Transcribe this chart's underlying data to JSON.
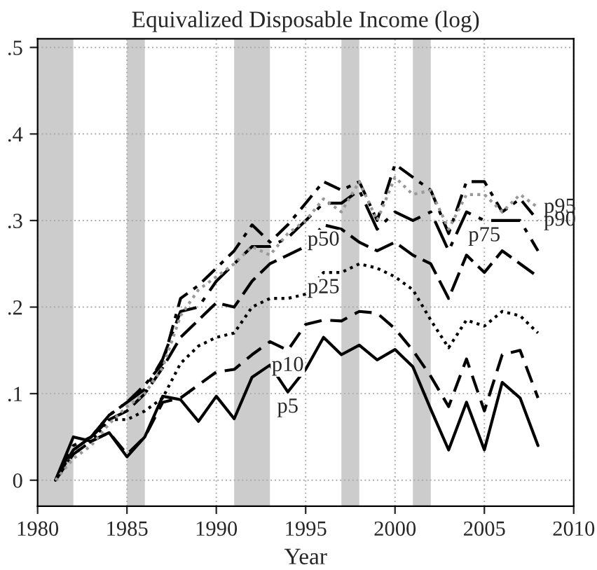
{
  "chart_data": {
    "type": "line",
    "title": "Equivalized Disposable Income (log)",
    "xlabel": "Year",
    "x": [
      1981,
      1982,
      1983,
      1984,
      1985,
      1986,
      1987,
      1988,
      1989,
      1990,
      1991,
      1992,
      1993,
      1994,
      1995,
      1996,
      1997,
      1998,
      1999,
      2000,
      2001,
      2002,
      2003,
      2004,
      2005,
      2006,
      2007,
      2008
    ],
    "series": [
      {
        "color": "#000000",
        "line_style": "solid",
        "values": [
          0,
          0.05,
          0.045,
          0.055,
          0.027,
          0.05,
          0.097,
          0.093,
          0.068,
          0.097,
          0.071,
          0.119,
          0.133,
          0.102,
          0.128,
          0.165,
          0.145,
          0.156,
          0.139,
          0.151,
          0.131,
          0.082,
          0.035,
          0.09,
          0.035,
          0.113,
          0.095,
          0.04
        ]
      },
      {
        "color": "#000000",
        "line_style": "dashed",
        "values": [
          0,
          0.03,
          0.045,
          0.055,
          0.03,
          0.05,
          0.09,
          0.095,
          0.11,
          0.125,
          0.128,
          0.145,
          0.16,
          0.15,
          0.18,
          0.185,
          0.184,
          0.195,
          0.193,
          0.175,
          0.15,
          0.12,
          0.085,
          0.14,
          0.08,
          0.145,
          0.15,
          0.095
        ]
      },
      {
        "color": "#000000",
        "line_style": "dotted",
        "values": [
          0,
          0.03,
          0.045,
          0.07,
          0.07,
          0.08,
          0.095,
          0.135,
          0.155,
          0.165,
          0.17,
          0.2,
          0.21,
          0.21,
          0.215,
          0.24,
          0.24,
          0.25,
          0.245,
          0.235,
          0.22,
          0.185,
          0.153,
          0.185,
          0.178,
          0.195,
          0.19,
          0.17
        ]
      },
      {
        "color": "#000000",
        "line_style": "longdash",
        "values": [
          0,
          0.035,
          0.05,
          0.07,
          0.08,
          0.1,
          0.13,
          0.165,
          0.185,
          0.205,
          0.2,
          0.23,
          0.25,
          0.26,
          0.27,
          0.295,
          0.29,
          0.275,
          0.265,
          0.275,
          0.26,
          0.25,
          0.21,
          0.26,
          0.24,
          0.265,
          0.25,
          0.235
        ]
      },
      {
        "color": "#000000",
        "line_style": "longdashdot",
        "values": [
          0,
          0.04,
          0.05,
          0.075,
          0.09,
          0.105,
          0.14,
          0.195,
          0.2,
          0.23,
          0.25,
          0.27,
          0.27,
          0.28,
          0.3,
          0.32,
          0.32,
          0.335,
          0.29,
          0.31,
          0.3,
          0.31,
          0.265,
          0.31,
          0.3,
          0.3,
          0.3,
          0.265
        ]
      },
      {
        "color": "#000000",
        "line_style": "dashdot",
        "values": [
          0,
          0.035,
          0.05,
          0.075,
          0.09,
          0.11,
          0.135,
          0.21,
          0.225,
          0.245,
          0.265,
          0.295,
          0.275,
          0.295,
          0.32,
          0.345,
          0.335,
          0.345,
          0.3,
          0.365,
          0.35,
          0.335,
          0.285,
          0.345,
          0.345,
          0.31,
          0.325,
          0.3
        ]
      },
      {
        "color": "#999999",
        "line_style": "dotted",
        "values": [
          0,
          0.025,
          0.04,
          0.065,
          0.085,
          0.1,
          0.13,
          0.19,
          0.22,
          0.235,
          0.25,
          0.27,
          0.26,
          0.285,
          0.3,
          0.325,
          0.31,
          0.345,
          0.3,
          0.35,
          0.33,
          0.335,
          0.29,
          0.33,
          0.33,
          0.31,
          0.33,
          0.315
        ]
      }
    ],
    "annotations": [
      {
        "text": "p5",
        "x": 1994,
        "y": 0.102
      },
      {
        "text": "p10",
        "x": 1994,
        "y": 0.15
      },
      {
        "text": "p25",
        "x": 1996,
        "y": 0.24
      },
      {
        "text": "p50",
        "x": 1996,
        "y": 0.295
      },
      {
        "text": "p75",
        "x": 2005,
        "y": 0.3
      },
      {
        "text": "p90",
        "x": 2008,
        "y": 0.3
      },
      {
        "text": "p95",
        "x": 2008,
        "y": 0.315
      }
    ],
    "bands": [
      {
        "axis": "x",
        "from": 1980,
        "to": 1982,
        "color": "#cccccc"
      },
      {
        "axis": "x",
        "from": 1985,
        "to": 1986,
        "color": "#cccccc"
      },
      {
        "axis": "x",
        "from": 1991,
        "to": 1993,
        "color": "#cccccc"
      },
      {
        "axis": "x",
        "from": 1997,
        "to": 1998,
        "color": "#cccccc"
      },
      {
        "axis": "x",
        "from": 2001,
        "to": 2002,
        "color": "#cccccc"
      }
    ],
    "xlim": [
      1980,
      2010
    ],
    "xticks": [
      1980,
      1985,
      1990,
      1995,
      2000,
      2005,
      2010
    ],
    "ylim": [
      -0.03,
      0.51
    ],
    "yticks": [
      {
        "value": 0,
        "label": "0"
      },
      {
        "value": 0.1,
        "label": ".1"
      },
      {
        "value": 0.2,
        "label": ".2"
      },
      {
        "value": 0.3,
        "label": ".3"
      },
      {
        "value": 0.4,
        "label": ".4"
      },
      {
        "value": 0.5,
        "label": ".5"
      }
    ],
    "grid": true,
    "legend": false
  }
}
